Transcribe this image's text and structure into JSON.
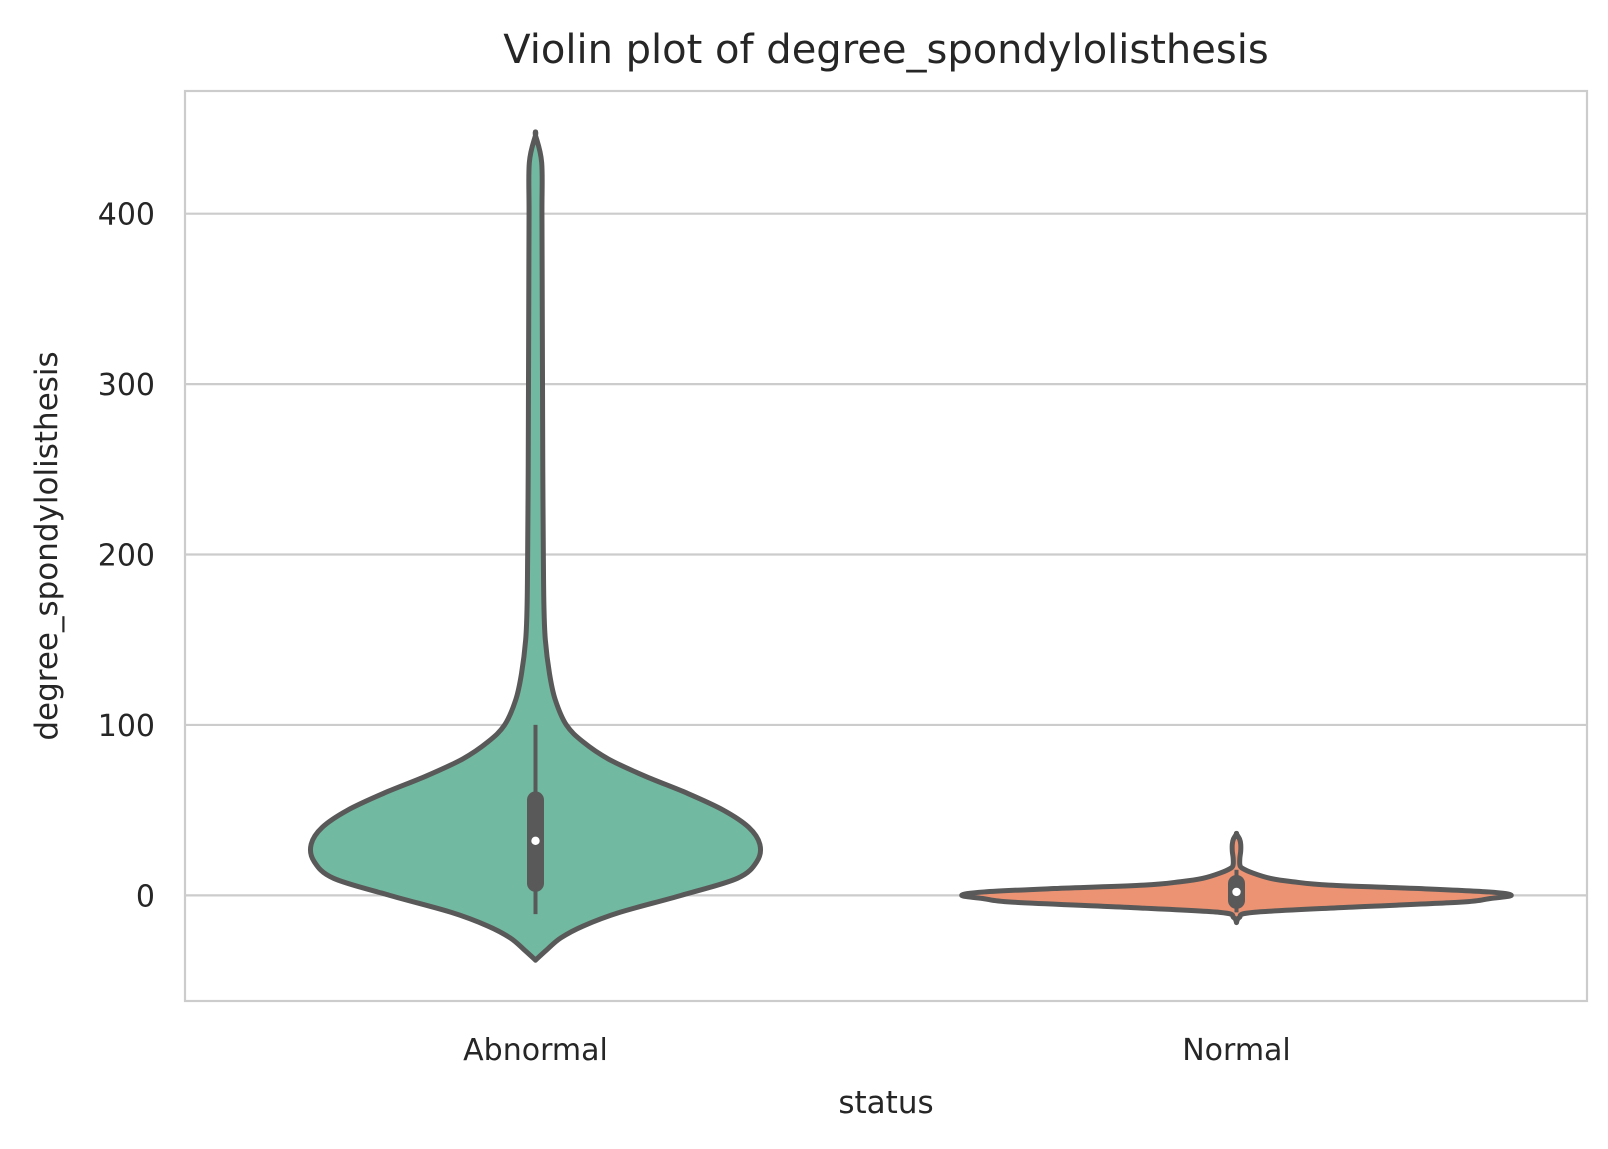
{
  "chart_data": {
    "type": "violin",
    "title": "Violin plot of degree_spondylolisthesis",
    "xlabel": "status",
    "ylabel": "degree_spondylolisthesis",
    "categories": [
      "Abnormal",
      "Normal"
    ],
    "yticks": [
      0,
      100,
      200,
      300,
      400
    ],
    "ylim": [
      -62,
      472
    ],
    "grid": true,
    "legend": "none",
    "colors": {
      "Abnormal": "#72b9a1",
      "Normal": "#ec9373",
      "outline": "#595959",
      "grid": "#cccccc",
      "text": "#262626"
    },
    "violins": [
      {
        "category": "Abnormal",
        "min": -38,
        "max": 446,
        "median": 32,
        "q1": 7,
        "q3": 56,
        "whisker_low": -11,
        "whisker_high": 100,
        "density": [
          [
            -38,
            0.0
          ],
          [
            -32,
            0.04
          ],
          [
            -25,
            0.09
          ],
          [
            -18,
            0.17
          ],
          [
            -10,
            0.3
          ],
          [
            0,
            0.52
          ],
          [
            10,
            0.72
          ],
          [
            20,
            0.79
          ],
          [
            30,
            0.8
          ],
          [
            40,
            0.76
          ],
          [
            50,
            0.67
          ],
          [
            60,
            0.54
          ],
          [
            70,
            0.39
          ],
          [
            80,
            0.26
          ],
          [
            90,
            0.17
          ],
          [
            100,
            0.11
          ],
          [
            115,
            0.07
          ],
          [
            130,
            0.05
          ],
          [
            150,
            0.035
          ],
          [
            170,
            0.03
          ],
          [
            200,
            0.028
          ],
          [
            250,
            0.026
          ],
          [
            300,
            0.025
          ],
          [
            350,
            0.024
          ],
          [
            400,
            0.023
          ],
          [
            430,
            0.022
          ],
          [
            446,
            0.0
          ]
        ]
      },
      {
        "category": "Normal",
        "min": -16,
        "max": 36,
        "median": 2,
        "q1": -3,
        "q3": 7,
        "whisker_low": -10,
        "whisker_high": 15,
        "density": [
          [
            -16,
            0.0
          ],
          [
            -13,
            0.01
          ],
          [
            -10,
            0.06
          ],
          [
            -7,
            0.4
          ],
          [
            -4,
            0.8
          ],
          [
            -2,
            0.9
          ],
          [
            0,
            0.98
          ],
          [
            2,
            0.9
          ],
          [
            4,
            0.65
          ],
          [
            6,
            0.33
          ],
          [
            8,
            0.2
          ],
          [
            10,
            0.12
          ],
          [
            13,
            0.06
          ],
          [
            16,
            0.02
          ],
          [
            18,
            0.012
          ],
          [
            22,
            0.012
          ],
          [
            26,
            0.015
          ],
          [
            30,
            0.015
          ],
          [
            33,
            0.011
          ],
          [
            36,
            0.0
          ]
        ]
      }
    ]
  }
}
